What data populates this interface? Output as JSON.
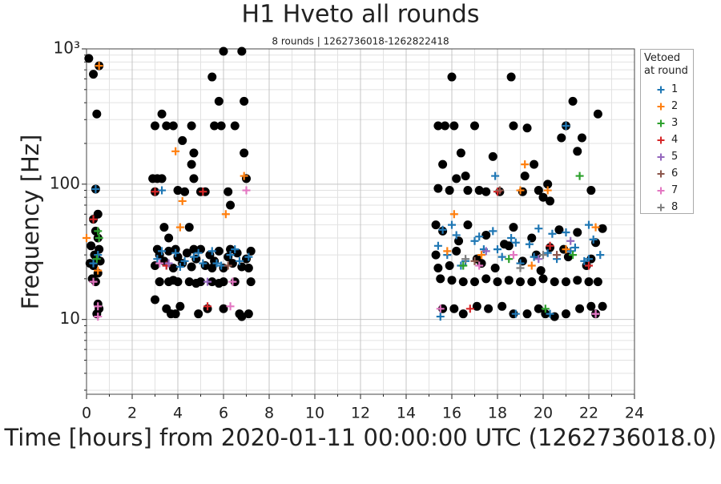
{
  "chart_data": {
    "type": "scatter",
    "title": "H1 Hveto all rounds",
    "subtitle": "8 rounds | 1262736018-1262822418",
    "x_label": "Time [hours] from 2020-01-11 00:00:00 UTC (1262736018.0)",
    "y_label": "Frequency [Hz]",
    "legend_title": "Vetoed at round",
    "legend": "outside-right",
    "grid": true,
    "yscale": "log",
    "xlim": [
      0,
      24
    ],
    "xticks": [
      0,
      2,
      4,
      6,
      8,
      10,
      12,
      14,
      16,
      18,
      20,
      22,
      24
    ],
    "xminorticks": [
      1,
      3,
      5,
      7,
      9,
      11,
      13,
      15,
      17,
      19,
      21,
      23
    ],
    "ylim": [
      2.8,
      1000
    ],
    "yticks": [
      10,
      100,
      {
        "value": 1000,
        "label": "10³"
      }
    ],
    "yminorticks": [
      3,
      4,
      5,
      6,
      7,
      8,
      9,
      20,
      30,
      40,
      50,
      60,
      70,
      80,
      90,
      200,
      300,
      400,
      500,
      600,
      700,
      800,
      900
    ],
    "series": [
      {
        "color": "#000000",
        "marker": "o",
        "x": [
          0.1,
          0.3,
          0.45,
          0.55,
          0.4,
          0.5,
          0.3,
          0.4,
          0.5,
          0.2,
          0.35,
          0.45,
          0.3,
          0.5,
          0.25,
          0.4,
          0.5,
          0.55,
          0.45,
          0.6,
          0.15,
          0.55,
          3.0,
          2.9,
          3.1,
          3.3,
          3.0,
          3.3,
          3.5,
          3.8,
          3.4,
          3.6,
          3.0,
          3.2,
          3.5,
          3.7,
          3.9,
          4.1,
          4.0,
          4.3,
          4.2,
          4.6,
          4.7,
          4.6,
          4.5,
          4.7,
          5.0,
          5.2,
          5.5,
          5.6,
          5.8,
          5.9,
          6.0,
          6.2,
          6.3,
          6.5,
          6.8,
          6.9,
          6.9,
          7.0,
          5.3,
          4.9,
          6.0,
          6.7,
          7.1,
          6.8,
          3.2,
          4.0,
          5.0,
          6.0,
          7.2,
          3.6,
          4.5,
          5.5,
          6.5,
          4.8,
          5.8,
          3.8,
          3.0,
          3.2,
          3.4,
          3.6,
          3.8,
          4.0,
          4.2,
          4.4,
          4.6,
          4.8,
          5.0,
          5.2,
          5.4,
          5.6,
          5.8,
          6.0,
          6.2,
          6.4,
          6.6,
          6.8,
          7.0,
          7.2,
          3.1,
          3.9,
          4.7,
          5.5,
          6.3,
          7.1,
          15.4,
          15.6,
          15.7,
          16.0,
          16.1,
          16.2,
          16.4,
          16.7,
          16.6,
          17.0,
          17.2,
          17.5,
          17.8,
          18.1,
          18.6,
          18.7,
          19.1,
          19.2,
          19.3,
          19.6,
          19.8,
          20.2,
          20.0,
          20.3,
          20.8,
          21.0,
          21.3,
          21.5,
          21.7,
          22.1,
          22.4,
          15.3,
          15.4,
          15.9,
          15.6,
          16.1,
          16.5,
          17.1,
          17.6,
          18.2,
          18.7,
          19.3,
          19.8,
          20.1,
          20.5,
          21.0,
          21.6,
          22.1,
          22.6,
          22.3,
          15.5,
          16.0,
          16.5,
          17.0,
          17.5,
          18.0,
          18.5,
          19.0,
          19.5,
          20.0,
          20.5,
          21.0,
          21.5,
          22.0,
          22.4,
          15.3,
          15.6,
          15.9,
          16.3,
          16.7,
          17.1,
          17.5,
          17.9,
          18.3,
          18.7,
          19.1,
          19.5,
          19.9,
          20.3,
          20.7,
          21.1,
          21.5,
          21.9,
          22.3,
          22.6,
          15.4,
          16.2,
          17.3,
          18.5,
          19.7,
          20.9,
          22.1
        ],
        "values": [
          850,
          650,
          330,
          750,
          92,
          60,
          55,
          45,
          40,
          35,
          30,
          28,
          25,
          22,
          20,
          19,
          13,
          12,
          11,
          27,
          26,
          33,
          88,
          110,
          110,
          110,
          270,
          330,
          270,
          270,
          48,
          40,
          14,
          19,
          12,
          11,
          11,
          12.5,
          90,
          88,
          210,
          270,
          170,
          140,
          48,
          110,
          88,
          88,
          620,
          270,
          410,
          270,
          960,
          88,
          70,
          270,
          960,
          410,
          170,
          110,
          12,
          11,
          12,
          11,
          11,
          10.5,
          19,
          19,
          19,
          19,
          19,
          19,
          19,
          19,
          19,
          18.5,
          18.5,
          19.5,
          25,
          30,
          27,
          32,
          24,
          29,
          26,
          31,
          24.5,
          28,
          33,
          25,
          30,
          27,
          32,
          24,
          29,
          26,
          31,
          24.5,
          28,
          32,
          33,
          33,
          33,
          24,
          33,
          24,
          270,
          140,
          270,
          620,
          270,
          110,
          170,
          90,
          115,
          270,
          90,
          88,
          160,
          88,
          620,
          270,
          88,
          115,
          260,
          140,
          90,
          100,
          80,
          75,
          220,
          270,
          410,
          175,
          220,
          90,
          330,
          50,
          93,
          90,
          12,
          12,
          11,
          12.5,
          12,
          12.5,
          11,
          11,
          12,
          11,
          10.5,
          11,
          12,
          12.5,
          12.5,
          11,
          20,
          19.5,
          19,
          19,
          20,
          19,
          19.5,
          19,
          19,
          20,
          19,
          19,
          19.5,
          19,
          19,
          30,
          45,
          25,
          38,
          50,
          28,
          42,
          24,
          36,
          48,
          27,
          40,
          23,
          34,
          46,
          29,
          44,
          25,
          37,
          47,
          24,
          32,
          26,
          35,
          30,
          33,
          28
        ]
      },
      {
        "name": "1",
        "color": "#1f77b4",
        "marker": "+",
        "x": [
          0.4,
          3.3,
          16.0,
          17.9,
          21.0,
          15.5,
          22.0,
          18.8,
          20.3,
          0.5,
          0.3,
          3.1,
          3.5,
          3.9,
          4.3,
          4.7,
          5.1,
          5.5,
          5.9,
          6.3,
          6.7,
          7.1,
          3.3,
          4.1,
          4.9,
          5.7,
          6.5,
          15.4,
          15.8,
          16.2,
          16.6,
          17.0,
          17.4,
          17.8,
          18.2,
          18.6,
          19.0,
          19.4,
          19.8,
          20.2,
          20.6,
          21.0,
          21.4,
          21.8,
          22.2,
          22.5,
          15.6,
          16.4,
          17.2,
          18.0,
          18.8,
          19.6,
          20.4,
          21.2,
          22.0
        ],
        "values": [
          92,
          90,
          50,
          115,
          270,
          10.5,
          50,
          11,
          11,
          30,
          26,
          28,
          25,
          31,
          27,
          29,
          26,
          32,
          25,
          30,
          27,
          29,
          32,
          24.5,
          31,
          26,
          33,
          35,
          30,
          42,
          27,
          38,
          33,
          45,
          29,
          40,
          26,
          36,
          47,
          31,
          28,
          44,
          34,
          27,
          39,
          30,
          46,
          25,
          41,
          33,
          37,
          29,
          43,
          32,
          28
        ]
      },
      {
        "name": "2",
        "color": "#ff7f0e",
        "marker": "+",
        "x": [
          0.55,
          0.0,
          3.9,
          4.2,
          6.9,
          6.1,
          4.1,
          16.1,
          19.2,
          19.0,
          20.2,
          17.3,
          19.5,
          21.0,
          22.3,
          15.8,
          0.5
        ],
        "values": [
          750,
          40,
          175,
          75,
          115,
          60,
          48,
          60,
          140,
          90,
          90,
          30,
          25,
          33,
          48,
          32,
          23
        ]
      },
      {
        "name": "3",
        "color": "#2ca02c",
        "marker": "+",
        "x": [
          0.55,
          0.5,
          21.6,
          20.1,
          16.5,
          18.5,
          21.3,
          0.45
        ],
        "values": [
          40,
          45,
          115,
          12,
          25,
          28,
          30,
          28
        ]
      },
      {
        "name": "4",
        "color": "#d62728",
        "marker": "+",
        "x": [
          0.3,
          3.0,
          5.1,
          5.3,
          18.0,
          16.8,
          3.5,
          20.3,
          22.0
        ],
        "values": [
          55,
          88,
          88,
          12.5,
          88,
          12,
          25,
          35,
          25
        ]
      },
      {
        "name": "5",
        "color": "#9467bd",
        "marker": "+",
        "x": [
          5.3,
          22.3,
          3.6,
          17.5,
          19.8,
          21.2
        ],
        "values": [
          19,
          11,
          26,
          32,
          28,
          38
        ]
      },
      {
        "name": "6",
        "color": "#8c564b",
        "marker": "+",
        "x": [
          18.1,
          6.2,
          17.0,
          20.6
        ],
        "values": [
          90,
          25,
          27,
          30
        ]
      },
      {
        "name": "7",
        "color": "#e377c2",
        "marker": "+",
        "x": [
          0.5,
          0.5,
          7.0,
          6.3,
          15.5,
          22.3,
          18.7,
          17.2,
          0.3,
          3.2,
          6.4
        ],
        "values": [
          12.5,
          10.5,
          90,
          12.5,
          12,
          11,
          30,
          25,
          19,
          26,
          19
        ]
      },
      {
        "name": "8",
        "color": "#7f7f7f",
        "marker": "+",
        "x": [
          20.0,
          16.6,
          19.0
        ],
        "values": [
          30,
          28,
          24
        ]
      }
    ]
  }
}
